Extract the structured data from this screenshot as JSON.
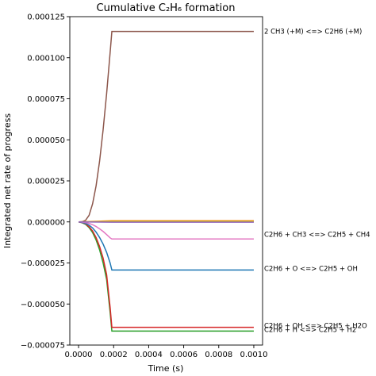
{
  "chart_data": {
    "type": "line",
    "title": "Cumulative C₂H₆ formation",
    "xlabel": "Time (s)",
    "ylabel": "Integrated net rate of progress",
    "xlim": [
      -5e-05,
      0.00105
    ],
    "ylim": [
      -7.5e-05,
      0.000125
    ],
    "x_ticks": [
      0.0,
      0.0002,
      0.0004,
      0.0006,
      0.0008,
      0.001
    ],
    "x_tick_labels": [
      "0.0000",
      "0.0002",
      "0.0004",
      "0.0006",
      "0.0008",
      "0.0010"
    ],
    "y_ticks": [
      -7.5e-05,
      -5e-05,
      -2.5e-05,
      0.0,
      2.5e-05,
      5e-05,
      7.5e-05,
      0.0001,
      0.000125
    ],
    "y_tick_labels": [
      "−0.000075",
      "−0.000050",
      "−0.000025",
      "0.000000",
      "0.000025",
      "0.000050",
      "0.000075",
      "0.000100",
      "0.000125"
    ],
    "grid": false,
    "series": [
      {
        "color": "#8c564b",
        "x": [
          0,
          2e-05,
          4e-05,
          6e-05,
          8e-05,
          0.0001,
          0.00012,
          0.00014,
          0.00016,
          0.00018,
          0.00019,
          0.001
        ],
        "y": [
          0,
          1e-07,
          1e-06,
          4e-06,
          1.1e-05,
          2.2e-05,
          3.7e-05,
          5.6e-05,
          7.8e-05,
          0.000103,
          0.000116,
          0.000116
        ]
      },
      {
        "color": "#2ca02c",
        "x": [
          0,
          2e-05,
          4e-05,
          6e-05,
          8e-05,
          0.0001,
          0.00012,
          0.00014,
          0.00016,
          0.00018,
          0.00019,
          0.001
        ],
        "y": [
          0,
          -5e-07,
          -1.5e-06,
          -3.5e-06,
          -6.5e-06,
          -1.1e-05,
          -1.7e-05,
          -2.5e-05,
          -3.5e-05,
          -5.5e-05,
          -6.65e-05,
          -6.65e-05
        ]
      },
      {
        "color": "#d62728",
        "x": [
          0,
          2e-05,
          4e-05,
          6e-05,
          8e-05,
          0.0001,
          0.00012,
          0.00014,
          0.00016,
          0.00018,
          0.00019,
          0.001
        ],
        "y": [
          0,
          -4e-07,
          -1.2e-06,
          -3e-06,
          -5.5e-06,
          -9.5e-06,
          -1.5e-05,
          -2.2e-05,
          -3.2e-05,
          -5.2e-05,
          -6.42e-05,
          -6.42e-05
        ]
      },
      {
        "color": "#1f77b4",
        "x": [
          0,
          2e-05,
          4e-05,
          6e-05,
          8e-05,
          0.0001,
          0.00012,
          0.00014,
          0.00016,
          0.00018,
          0.00019,
          0.001
        ],
        "y": [
          0,
          -3e-07,
          -9e-07,
          -2e-06,
          -3.7e-06,
          -6.2e-06,
          -9.5e-06,
          -1.35e-05,
          -1.85e-05,
          -2.5e-05,
          -2.93e-05,
          -2.93e-05
        ]
      },
      {
        "color": "#e377c2",
        "x": [
          0,
          2e-05,
          4e-05,
          6e-05,
          8e-05,
          0.0001,
          0.00012,
          0.00014,
          0.00016,
          0.00018,
          0.00019,
          0.001
        ],
        "y": [
          0,
          -1e-07,
          -4e-07,
          -9e-07,
          -1.7e-06,
          -2.8e-06,
          -4.2e-06,
          -5.8e-06,
          -7.7e-06,
          -9.7e-06,
          -1.04e-05,
          -1.04e-05
        ]
      },
      {
        "color": "#ff7f0e",
        "x": [
          0,
          0.00019,
          0.001
        ],
        "y": [
          0,
          7e-07,
          7e-07
        ]
      },
      {
        "color": "#bcbd22",
        "x": [
          0,
          0.00019,
          0.001
        ],
        "y": [
          0,
          3e-07,
          3e-07
        ]
      },
      {
        "color": "#9467bd",
        "x": [
          0,
          0.00019,
          0.001
        ],
        "y": [
          0,
          -2e-07,
          -2e-07
        ]
      }
    ],
    "annotations": [
      {
        "text": "2 CH3 (+M) <=> C2H6 (+M)",
        "y": 0.000116
      },
      {
        "text": "C2H6 + CH3 <=> C2H5 + CH4",
        "y": -7.5e-06
      },
      {
        "text": "C2H6 + O <=> C2H5 + OH",
        "y": -2.83e-05
      },
      {
        "text": "C2H6 + OH <=> C2H5 + H2O",
        "y": -6.32e-05
      },
      {
        "text": "C2H6 + H <=> C2H5 + H2",
        "y": -6.55e-05
      }
    ]
  }
}
